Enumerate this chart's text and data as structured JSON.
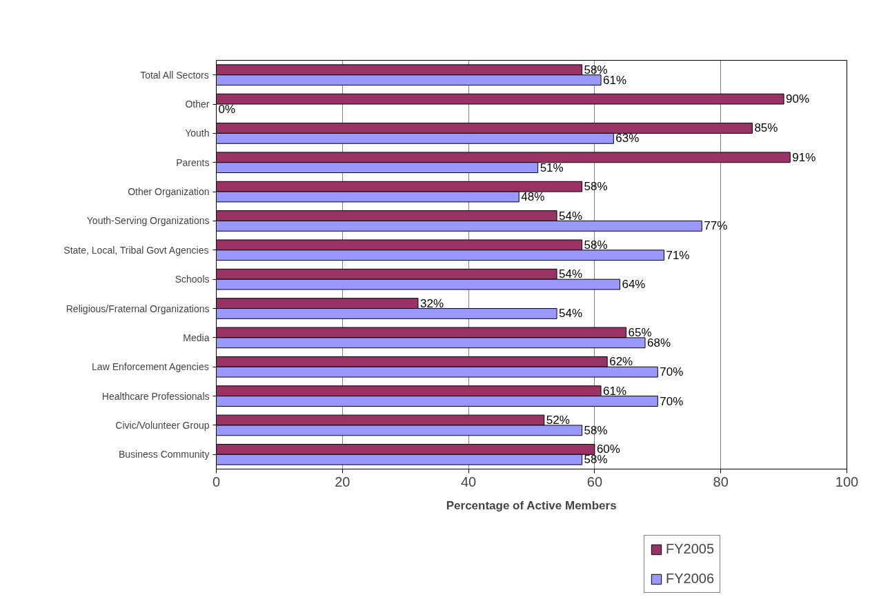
{
  "chart_data": {
    "type": "bar",
    "orientation": "horizontal",
    "xlabel": "Percentage of Active Members",
    "categories": [
      "Total All Sectors",
      "Other",
      "Youth",
      "Parents",
      "Other Organization",
      "Youth-Serving Organizations",
      "State, Local, Tribal Govt Agencies",
      "Schools",
      "Religious/Fraternal Organizations",
      "Media",
      "Law Enforcement Agencies",
      "Healthcare Professionals",
      "Civic/Volunteer Group",
      "Business Community"
    ],
    "series": [
      {
        "name": "FY2005",
        "color": "#993366",
        "values": [
          58,
          90,
          85,
          91,
          58,
          54,
          58,
          54,
          32,
          65,
          62,
          61,
          52,
          60
        ],
        "value_labels": [
          "58%",
          "90%",
          "85%",
          "91%",
          "58%",
          "54%",
          "58%",
          "54%",
          "32%",
          "65%",
          "62%",
          "61%",
          "52%",
          "60%"
        ]
      },
      {
        "name": "FY2006",
        "color": "#9999ff",
        "values": [
          61,
          0,
          63,
          51,
          48,
          77,
          71,
          64,
          54,
          68,
          70,
          70,
          58,
          58
        ],
        "value_labels": [
          "61%",
          "0%",
          "63%",
          "51%",
          "48%",
          "77%",
          "71%",
          "64%",
          "54%",
          "68%",
          "70%",
          "70%",
          "58%",
          "58%"
        ]
      }
    ],
    "xlim": [
      0,
      100
    ],
    "xticks": [
      0,
      20,
      40,
      60,
      80,
      100
    ],
    "grid": "x",
    "legend": "bottom right"
  }
}
